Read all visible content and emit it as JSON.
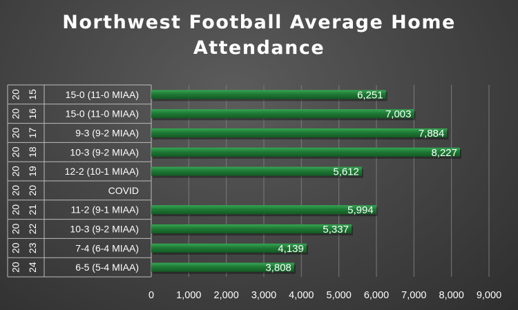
{
  "chart_data": {
    "type": "bar",
    "orientation": "horizontal",
    "title": "Northwest Football Average Home Attendance",
    "xlabel": "",
    "ylabel": "",
    "xlim": [
      0,
      9000
    ],
    "x_ticks": [
      "0",
      "1,000",
      "2,000",
      "3,000",
      "4,000",
      "5,000",
      "6,000",
      "7,000",
      "8,000",
      "9,000"
    ],
    "grid": true,
    "legend": "none",
    "bar_color": "#1f7a35",
    "categories": [
      {
        "year": "2015",
        "year_top": "20",
        "year_bottom": "15",
        "record": "15-0 (11-0 MIAA)"
      },
      {
        "year": "2016",
        "year_top": "20",
        "year_bottom": "16",
        "record": "15-0 (11-0 MIAA)"
      },
      {
        "year": "2017",
        "year_top": "20",
        "year_bottom": "17",
        "record": "9-3 (9-2 MIAA)"
      },
      {
        "year": "2018",
        "year_top": "20",
        "year_bottom": "18",
        "record": "10-3 (9-2 MIAA)"
      },
      {
        "year": "2019",
        "year_top": "20",
        "year_bottom": "19",
        "record": "12-2 (10-1 MIAA)"
      },
      {
        "year": "2020",
        "year_top": "20",
        "year_bottom": "20",
        "record": "COVID"
      },
      {
        "year": "2021",
        "year_top": "20",
        "year_bottom": "21",
        "record": "11-2 (9-1 MIAA)"
      },
      {
        "year": "2022",
        "year_top": "20",
        "year_bottom": "22",
        "record": "10-3 (9-2 MIAA)"
      },
      {
        "year": "2023",
        "year_top": "20",
        "year_bottom": "23",
        "record": "7-4 (6-4 MIAA)"
      },
      {
        "year": "2024",
        "year_top": "20",
        "year_bottom": "24",
        "record": "6-5 (5-4 MIAA)"
      }
    ],
    "values": [
      6251,
      7003,
      7884,
      8227,
      5612,
      null,
      5994,
      5337,
      4139,
      3808
    ],
    "value_labels": [
      "6,251",
      "7,003",
      "7,884",
      "8,227",
      "5,612",
      "",
      "5,994",
      "5,337",
      "4,139",
      "3,808"
    ]
  }
}
